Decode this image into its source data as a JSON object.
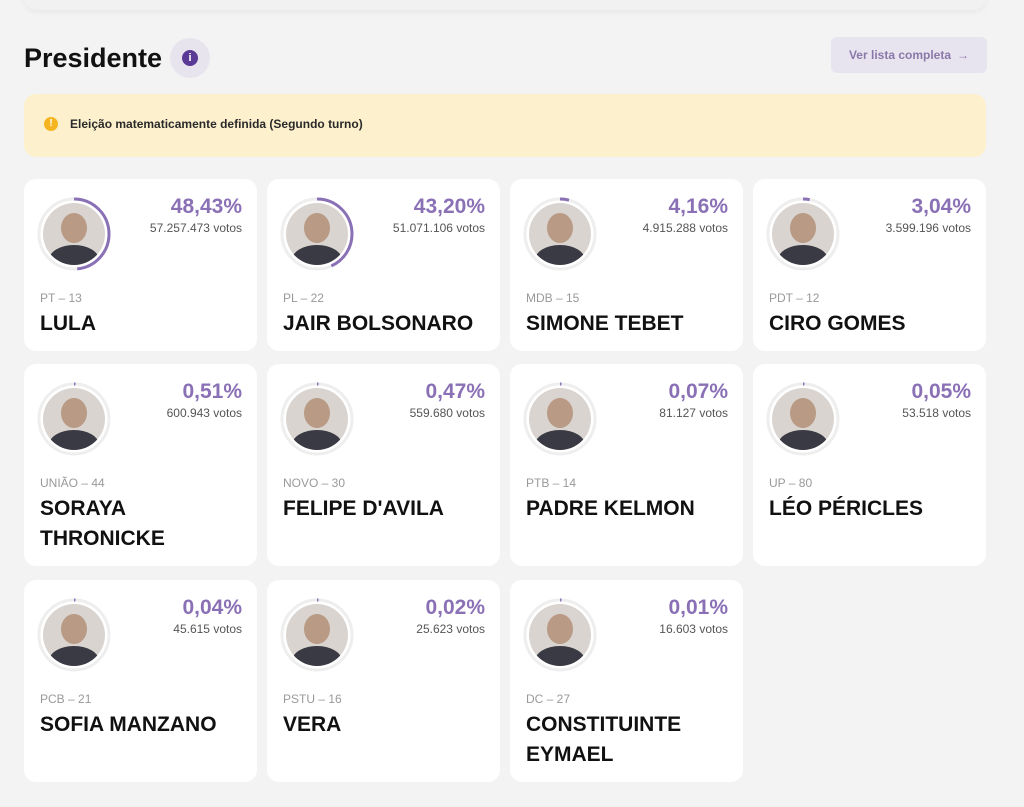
{
  "header": {
    "title": "Presidente",
    "info_icon": "info-icon",
    "full_list_label": "Ver lista completa",
    "arrow": "→"
  },
  "alert": {
    "icon": "!",
    "text": "Eleição matematicamente definida (Segundo turno)"
  },
  "accent": "#8a70b5",
  "candidates": [
    {
      "pct": "48,43%",
      "value": 48.43,
      "votes": "57.257.473 votos",
      "party": "PT – 13",
      "name": "LULA"
    },
    {
      "pct": "43,20%",
      "value": 43.2,
      "votes": "51.071.106 votos",
      "party": "PL – 22",
      "name": "JAIR BOLSONARO"
    },
    {
      "pct": "4,16%",
      "value": 4.16,
      "votes": "4.915.288 votos",
      "party": "MDB – 15",
      "name": "SIMONE TEBET"
    },
    {
      "pct": "3,04%",
      "value": 3.04,
      "votes": "3.599.196 votos",
      "party": "PDT – 12",
      "name": "CIRO GOMES"
    },
    {
      "pct": "0,51%",
      "value": 0.51,
      "votes": "600.943 votos",
      "party": "UNIÃO – 44",
      "name": "SORAYA THRONICKE"
    },
    {
      "pct": "0,47%",
      "value": 0.47,
      "votes": "559.680 votos",
      "party": "NOVO – 30",
      "name": "FELIPE D'AVILA"
    },
    {
      "pct": "0,07%",
      "value": 0.07,
      "votes": "81.127 votos",
      "party": "PTB – 14",
      "name": "PADRE KELMON"
    },
    {
      "pct": "0,05%",
      "value": 0.05,
      "votes": "53.518 votos",
      "party": "UP – 80",
      "name": "LÉO PÉRICLES"
    },
    {
      "pct": "0,04%",
      "value": 0.04,
      "votes": "45.615 votos",
      "party": "PCB – 21",
      "name": "SOFIA MANZANO"
    },
    {
      "pct": "0,02%",
      "value": 0.02,
      "votes": "25.623 votos",
      "party": "PSTU – 16",
      "name": "VERA"
    },
    {
      "pct": "0,01%",
      "value": 0.01,
      "votes": "16.603 votos",
      "party": "DC – 27",
      "name": "CONSTITUINTE EYMAEL"
    }
  ]
}
